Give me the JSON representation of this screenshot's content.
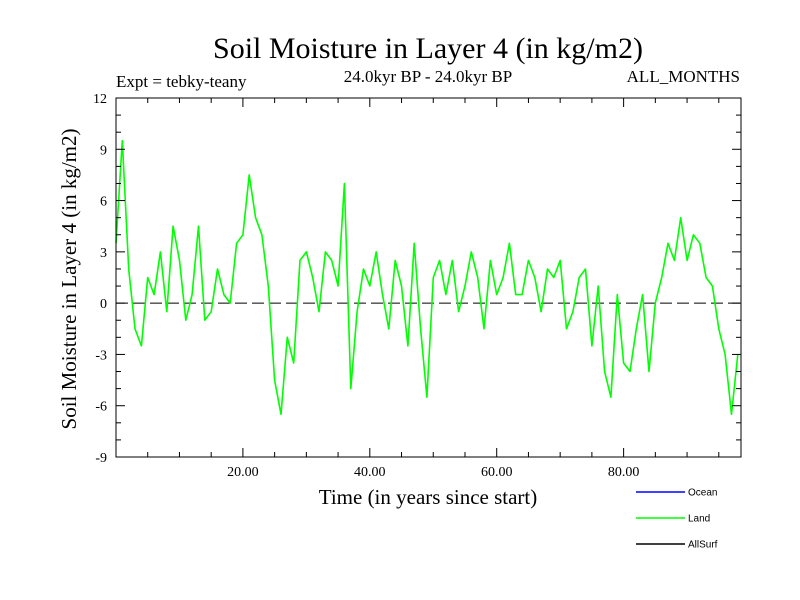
{
  "chart_data": {
    "type": "line",
    "title": "Soil Moisture in Layer 4 (in kg/m2)",
    "subtitle_left": "Expt = tebky-teany",
    "subtitle_center": "24.0kyr BP - 24.0kyr BP",
    "subtitle_right": "ALL_MONTHS",
    "xlabel": "Time (in years since start)",
    "ylabel": "Soil Moisture in Layer 4 (in kg/m2)",
    "xlim": [
      0,
      98.5
    ],
    "ylim": [
      -9,
      12
    ],
    "xticks": [
      20,
      40,
      60,
      80
    ],
    "xtick_labels": [
      "20.00",
      "40.00",
      "60.00",
      "80.00"
    ],
    "yticks": [
      -9,
      -6,
      -3,
      0,
      3,
      6,
      9,
      12
    ],
    "ytick_labels": [
      "-9",
      "-6",
      "-3",
      "0",
      "3",
      "6",
      "9",
      "12"
    ],
    "reference_line": 0,
    "legend": {
      "placement": "bottom-right",
      "entries": [
        {
          "name": "Ocean",
          "color": "#0000ff"
        },
        {
          "name": "Land",
          "color": "#00ff00"
        },
        {
          "name": "AllSurf",
          "color": "#000000"
        }
      ]
    },
    "series": [
      {
        "name": "Land",
        "color": "#00ff00",
        "x": [
          0,
          1,
          2,
          3,
          4,
          5,
          6,
          7,
          8,
          9,
          10,
          11,
          12,
          13,
          14,
          15,
          16,
          17,
          18,
          19,
          20,
          21,
          22,
          23,
          24,
          25,
          26,
          27,
          28,
          29,
          30,
          31,
          32,
          33,
          34,
          35,
          36,
          37,
          38,
          39,
          40,
          41,
          42,
          43,
          44,
          45,
          46,
          47,
          48,
          49,
          50,
          51,
          52,
          53,
          54,
          55,
          56,
          57,
          58,
          59,
          60,
          61,
          62,
          63,
          64,
          65,
          66,
          67,
          68,
          69,
          70,
          71,
          72,
          73,
          74,
          75,
          76,
          77,
          78,
          79,
          80,
          81,
          82,
          83,
          84,
          85,
          86,
          87,
          88,
          89,
          90,
          91,
          92,
          93,
          94,
          95,
          96,
          97,
          98
        ],
        "values": [
          3.5,
          9.5,
          2.0,
          -1.5,
          -2.5,
          1.5,
          0.5,
          3.0,
          -0.5,
          4.5,
          2.5,
          -1.0,
          0.5,
          4.5,
          -1.0,
          -0.5,
          2.0,
          0.5,
          0.0,
          3.5,
          4.0,
          7.5,
          5.0,
          4.0,
          1.0,
          -4.5,
          -6.5,
          -2.0,
          -3.5,
          2.5,
          3.0,
          1.5,
          -0.5,
          3.0,
          2.5,
          1.0,
          7.0,
          -5.0,
          -0.5,
          2.0,
          1.0,
          3.0,
          0.5,
          -1.5,
          2.5,
          1.0,
          -2.5,
          3.5,
          -1.5,
          -5.5,
          1.5,
          2.5,
          0.5,
          2.5,
          -0.5,
          1.0,
          3.0,
          1.5,
          -1.5,
          2.5,
          0.5,
          1.5,
          3.5,
          0.5,
          0.5,
          2.5,
          1.5,
          -0.5,
          2.0,
          1.5,
          2.5,
          -1.5,
          -0.5,
          1.5,
          2.0,
          -2.5,
          1.0,
          -4.0,
          -5.5,
          0.5,
          -3.5,
          -4.0,
          -1.5,
          0.5,
          -4.0,
          0.0,
          1.5,
          3.5,
          2.5,
          5.0,
          2.5,
          4.0,
          3.5,
          1.5,
          1.0,
          -1.5,
          -3.0,
          -6.5,
          -3.0
        ]
      }
    ]
  }
}
